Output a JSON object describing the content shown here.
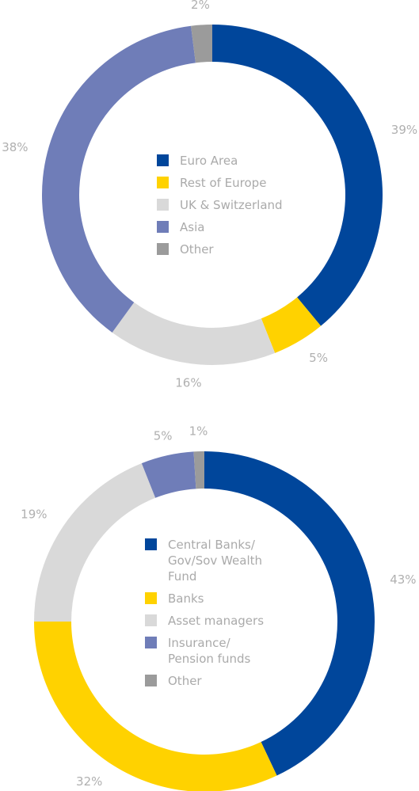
{
  "chart_data": [
    {
      "type": "donut",
      "categories": [
        "Euro Area",
        "Rest of Europe",
        "UK & Switzerland",
        "Asia",
        "Other"
      ],
      "values": [
        39,
        5,
        16,
        38,
        2
      ],
      "value_labels": [
        "39%",
        "5%",
        "16%",
        "38%",
        "2%"
      ],
      "colors": [
        "#00469b",
        "#ffd200",
        "#d9d9d9",
        "#6f7db8",
        "#9b9b9b"
      ]
    },
    {
      "type": "donut",
      "categories": [
        "Central Banks/ Gov/Sov Wealth Fund",
        "Banks",
        "Asset managers",
        "Insurance/ Pension funds",
        "Other"
      ],
      "values": [
        43,
        32,
        19,
        5,
        1
      ],
      "value_labels": [
        "43%",
        "32%",
        "19%",
        "5%",
        "1%"
      ],
      "colors": [
        "#00469b",
        "#ffd200",
        "#d9d9d9",
        "#6f7db8",
        "#9b9b9b"
      ]
    }
  ]
}
